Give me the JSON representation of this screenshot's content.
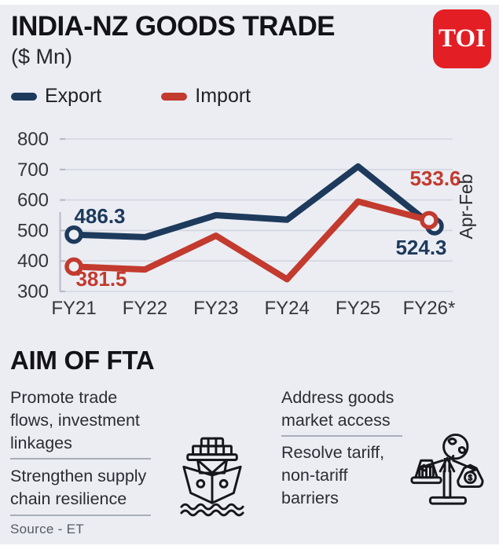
{
  "header": {
    "title": "INDIA-NZ GOODS TRADE",
    "subtitle": "($ Mn)",
    "logo_text": "TOI"
  },
  "legend": [
    {
      "label": "Export",
      "color": "#1d3a5c"
    },
    {
      "label": "Import",
      "color": "#c33a2e"
    }
  ],
  "chart_data": {
    "type": "line",
    "categories": [
      "FY21",
      "FY22",
      "FY23",
      "FY24",
      "FY25",
      "FY26*"
    ],
    "series": [
      {
        "name": "Export",
        "color": "#1d3a5c",
        "values": [
          486.3,
          478,
          550,
          535,
          710,
          524.3
        ]
      },
      {
        "name": "Import",
        "color": "#c33a2e",
        "values": [
          381.5,
          372,
          483,
          340,
          595,
          533.6
        ]
      }
    ],
    "ylim": [
      300,
      800
    ],
    "yticks": [
      300,
      400,
      500,
      600,
      700,
      800
    ],
    "grid": "horizontal",
    "right_axis_note": "Apr-Feb",
    "point_labels": [
      {
        "series": 0,
        "index": 0,
        "text": "486.3"
      },
      {
        "series": 1,
        "index": 0,
        "text": "381.5"
      },
      {
        "series": 1,
        "index": 5,
        "text": "533.6"
      },
      {
        "series": 0,
        "index": 5,
        "text": "524.3"
      }
    ],
    "markers": [
      {
        "series": 0,
        "index": 0
      },
      {
        "series": 1,
        "index": 0
      },
      {
        "series": 0,
        "index": 5
      },
      {
        "series": 1,
        "index": 5
      }
    ]
  },
  "aim": {
    "heading": "AIM OF FTA",
    "left_items": [
      {
        "lines": [
          "Promote trade",
          "flows, investment",
          "linkages"
        ]
      },
      {
        "lines": [
          "Strengthen supply",
          "chain resilience"
        ]
      }
    ],
    "right_items": [
      {
        "lines": [
          "Address goods",
          "market access"
        ]
      },
      {
        "lines": [
          "Resolve tariff,",
          "non-tariff",
          "barriers"
        ]
      }
    ],
    "icons": [
      "cargo-ship",
      "trade-balance-scale"
    ]
  },
  "source": "Source - ET",
  "colors": {
    "background": "#ebedf3",
    "export": "#1d3a5c",
    "import": "#c33a2e",
    "toi_red": "#e31e25",
    "gridline": "#d3d6e0"
  }
}
